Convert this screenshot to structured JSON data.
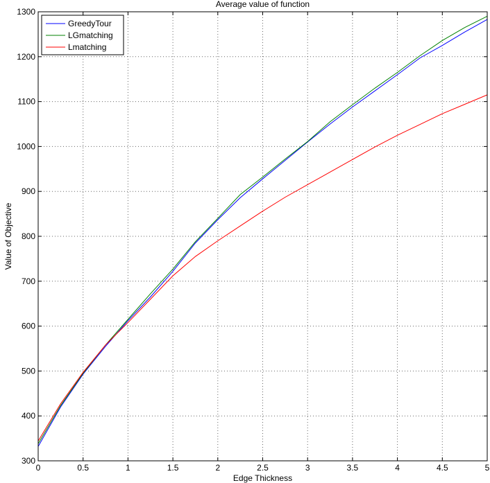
{
  "chart_data": {
    "type": "line",
    "title": "Average value of function",
    "xlabel": "Edge Thickness",
    "ylabel": "Value of Objective",
    "xlim": [
      0,
      5
    ],
    "ylim": [
      300,
      1300
    ],
    "xticks": [
      0,
      0.5,
      1,
      1.5,
      2,
      2.5,
      3,
      3.5,
      4,
      4.5,
      5
    ],
    "yticks": [
      300,
      400,
      500,
      600,
      700,
      800,
      900,
      1000,
      1100,
      1200,
      1300
    ],
    "xtick_labels": [
      "0",
      "0.5",
      "1",
      "1.5",
      "2",
      "2.5",
      "3",
      "3.5",
      "4",
      "4.5",
      "5"
    ],
    "ytick_labels": [
      "300",
      "400",
      "500",
      "600",
      "700",
      "800",
      "900",
      "1000",
      "1100",
      "1200",
      "1300"
    ],
    "grid": true,
    "legend_position": "top-left",
    "x": [
      0,
      0.25,
      0.5,
      0.75,
      1,
      1.25,
      1.5,
      1.75,
      2,
      2.25,
      2.5,
      2.75,
      3,
      3.25,
      3.5,
      3.75,
      4,
      4.25,
      4.5,
      4.75,
      5
    ],
    "series": [
      {
        "name": "GreedyTour",
        "color": "#0000ff",
        "values": [
          332,
          420,
          493,
          555,
          612,
          665,
          722,
          785,
          837,
          886,
          928,
          969,
          1010,
          1050,
          1088,
          1124,
          1160,
          1197,
          1225,
          1255,
          1283
        ]
      },
      {
        "name": "LGmatching",
        "color": "#008000",
        "values": [
          338,
          423,
          495,
          558,
          615,
          672,
          727,
          788,
          840,
          893,
          932,
          972,
          1011,
          1055,
          1093,
          1130,
          1165,
          1202,
          1236,
          1265,
          1290
        ]
      },
      {
        "name": "Lmatching",
        "color": "#ff0000",
        "values": [
          344,
          427,
          497,
          558,
          608,
          660,
          712,
          755,
          790,
          823,
          856,
          887,
          915,
          943,
          971,
          999,
          1025,
          1049,
          1073,
          1094,
          1115
        ]
      }
    ]
  }
}
